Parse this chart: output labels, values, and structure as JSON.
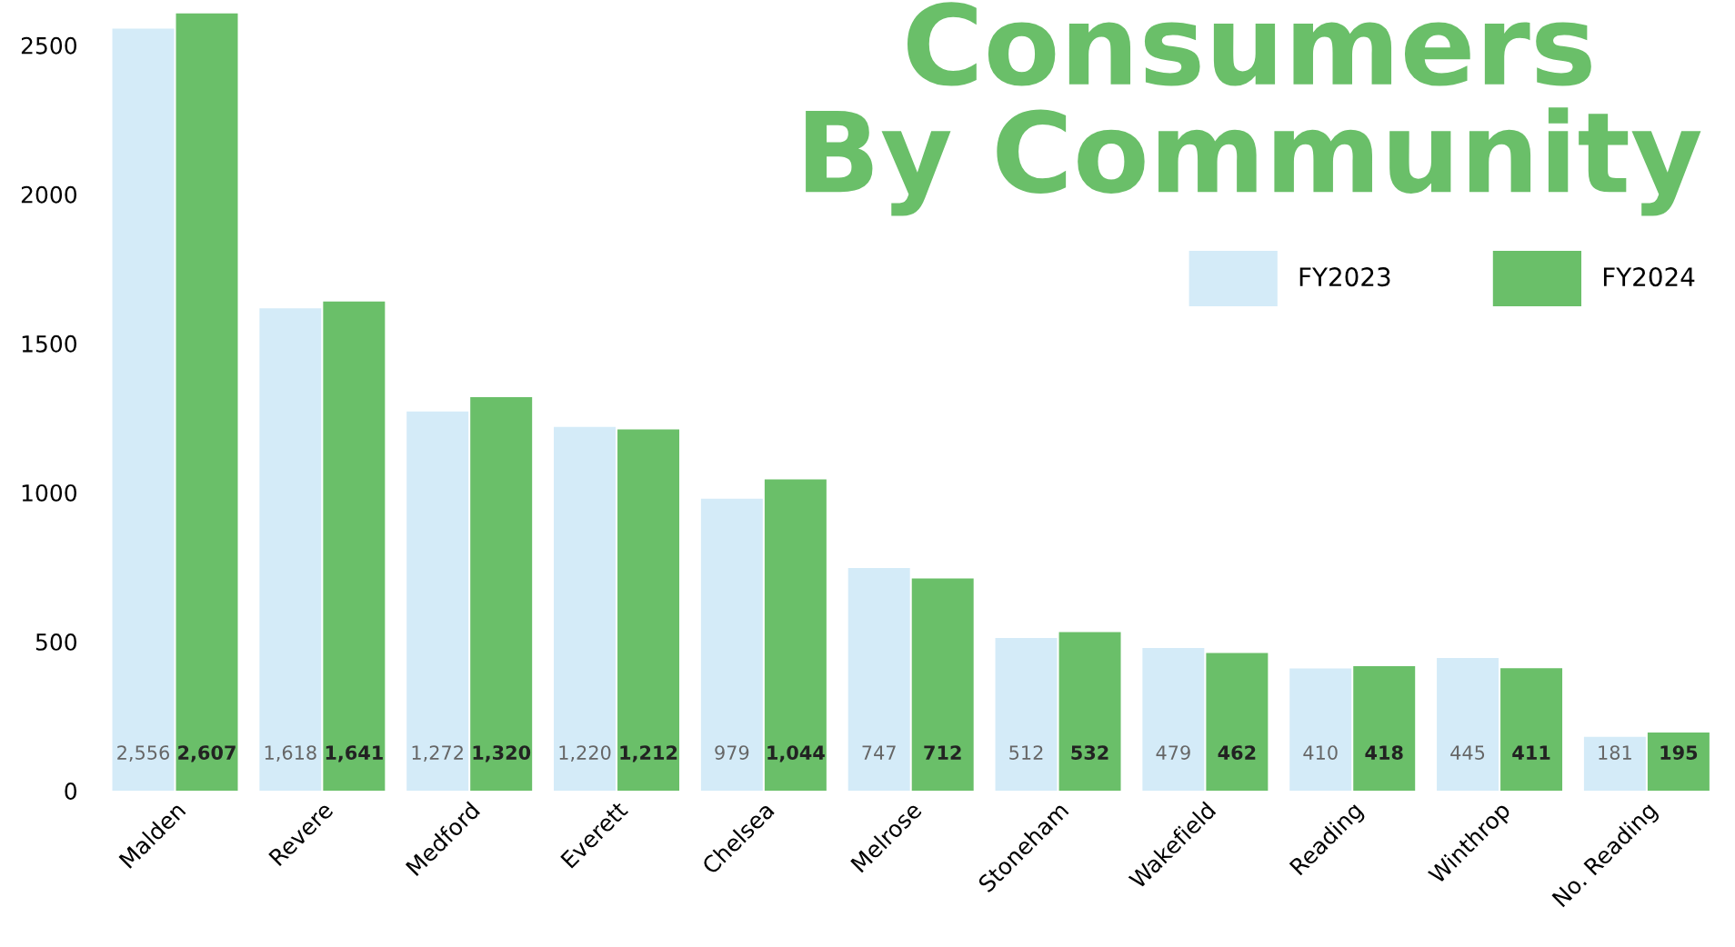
{
  "chart_data": {
    "type": "bar",
    "title": "Consumers\nBy Community",
    "categories": [
      "Malden",
      "Revere",
      "Medford",
      "Everett",
      "Chelsea",
      "Melrose",
      "Stoneham",
      "Wakefield",
      "Reading",
      "Winthrop",
      "No. Reading"
    ],
    "series": [
      {
        "name": "FY2023",
        "color": "#d4ebf8",
        "values": [
          2556,
          1618,
          1272,
          1220,
          979,
          747,
          512,
          479,
          410,
          445,
          181
        ],
        "value_labels": [
          "2,556",
          "1,618",
          "1,272",
          "1,220",
          "979",
          "747",
          "512",
          "479",
          "410",
          "445",
          "181"
        ]
      },
      {
        "name": "FY2024",
        "color": "#6abf69",
        "values": [
          2607,
          1641,
          1320,
          1212,
          1044,
          712,
          532,
          462,
          418,
          411,
          195
        ],
        "value_labels": [
          "2,607",
          "1,641",
          "1,320",
          "1,212",
          "1,044",
          "712",
          "532",
          "462",
          "418",
          "411",
          "195"
        ]
      }
    ],
    "ylim": [
      0,
      2620
    ],
    "yticks": [
      0,
      500,
      1000,
      1500,
      2000,
      2500
    ],
    "grid": false,
    "legend": "top right"
  }
}
